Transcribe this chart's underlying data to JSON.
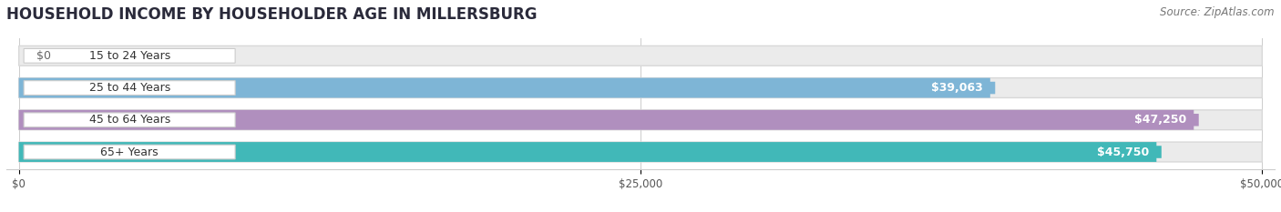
{
  "title": "HOUSEHOLD INCOME BY HOUSEHOLDER AGE IN MILLERSBURG",
  "source": "Source: ZipAtlas.com",
  "categories": [
    "15 to 24 Years",
    "25 to 44 Years",
    "45 to 64 Years",
    "65+ Years"
  ],
  "values": [
    0,
    39063,
    47250,
    45750
  ],
  "labels": [
    "$0",
    "$39,063",
    "$47,250",
    "$45,750"
  ],
  "bar_colors": [
    "#f2a0a8",
    "#7eb5d6",
    "#b08fbe",
    "#41b8b8"
  ],
  "bar_bg_color": "#ebebeb",
  "bar_bg_border": "#d8d8d8",
  "xlim": [
    0,
    50000
  ],
  "xtick_labels": [
    "$0",
    "$25,000",
    "$50,000"
  ],
  "xtick_values": [
    0,
    25000,
    50000
  ],
  "title_fontsize": 12,
  "source_fontsize": 8.5,
  "label_fontsize": 9,
  "category_fontsize": 9,
  "background_color": "#ffffff",
  "bar_height": 0.62,
  "pill_bg": "#ffffff",
  "pill_border": "#dddddd"
}
